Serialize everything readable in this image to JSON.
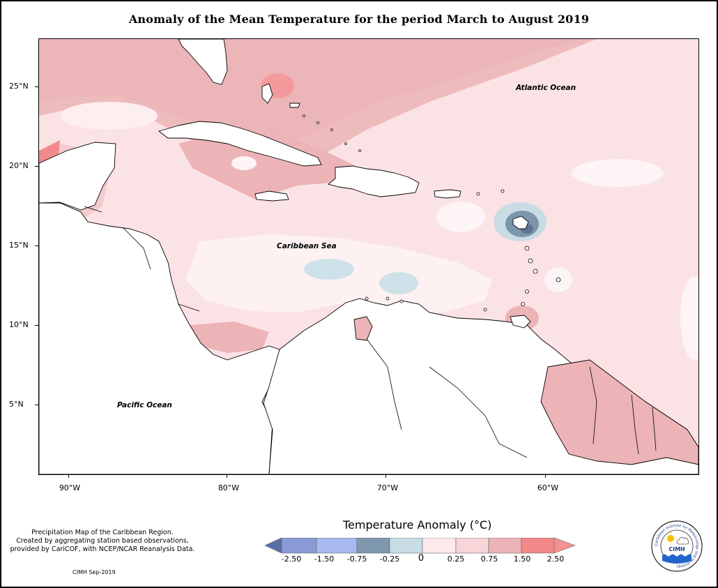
{
  "title": "Anomaly of the Mean Temperature for the period March to August 2019",
  "lat_labels": [
    "25°N",
    "20°N",
    "15°N",
    "10°N",
    "5°N"
  ],
  "lon_labels": [
    "90°W",
    "80°W",
    "70°W",
    "60°W"
  ],
  "places": {
    "atlantic": "Atlantic Ocean",
    "caribbean": "Caribbean Sea",
    "pacific": "Pacific Ocean"
  },
  "notes": {
    "line1": "Precipitation Map of the Caribbean Region.",
    "line2": "Created by aggregating station based observations,",
    "line3": "provided by CariCOF, with NCEP/NCAR Reanalysis Data."
  },
  "credit": "CIMH Sep-2019",
  "legend": {
    "title": "Temperature Anomaly (°C)",
    "labels": [
      "-2.50",
      "-1.50",
      "-0.75",
      "-0.25",
      "0",
      "0.25",
      "0.75",
      "1.50",
      "2.50"
    ],
    "colors": [
      "#5a6fa8",
      "#8a9ad6",
      "#a8b8f0",
      "#7f98ad",
      "#c8dde6",
      "#fde9ec",
      "#f7d5d9",
      "#ecb3b7",
      "#f28888",
      "#f59191"
    ]
  },
  "logo": {
    "text": "CIMH",
    "ring_text": "Caribbean Institute for Meteorology and Hydrology"
  }
}
